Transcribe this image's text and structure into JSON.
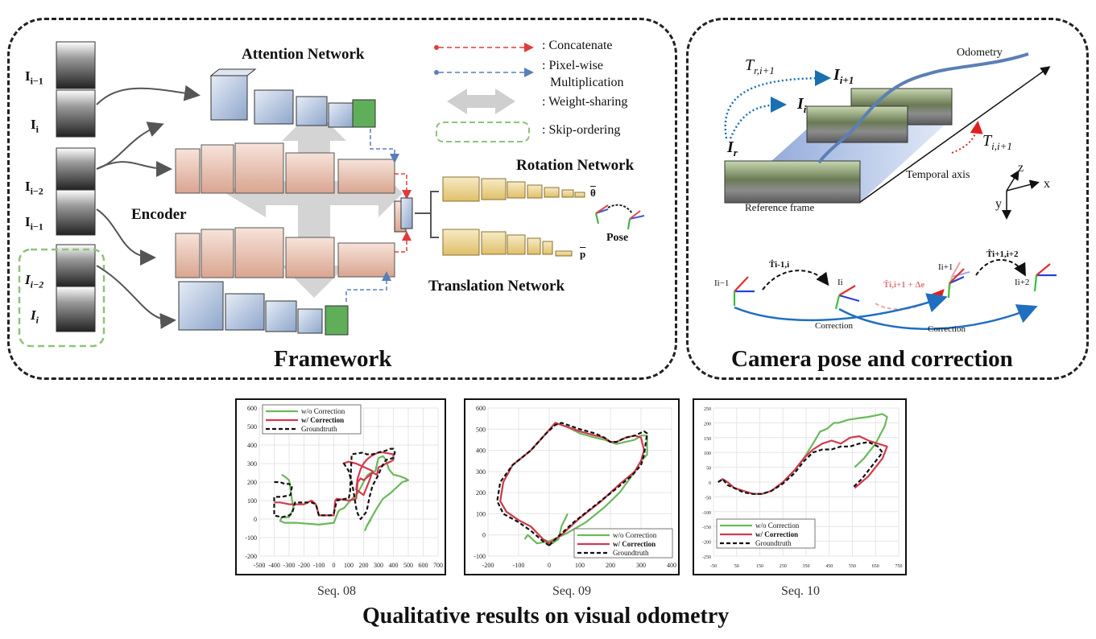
{
  "framework": {
    "title": "Framework",
    "attention_network": "Attention Network",
    "encoder": "Encoder",
    "rotation_network": "Rotation Network",
    "translation_network": "Translation Network",
    "theta": "θ",
    "p": "p",
    "pose": "Pose",
    "legend": {
      "concatenate": ": Concatenate",
      "pixelwise_1": ": Pixel-wise",
      "pixelwise_2": "Multiplication",
      "weight_sharing": ": Weight-sharing",
      "skip_ordering": ": Skip-ordering"
    },
    "inputs": [
      {
        "base": "I",
        "sub": "i−1"
      },
      {
        "base": "I",
        "sub": "i"
      },
      {
        "base": "I",
        "sub": "i−2"
      },
      {
        "base": "I",
        "sub": "i−1"
      },
      {
        "base": "I",
        "sub": "i−2"
      },
      {
        "base": "I",
        "sub": "i"
      }
    ]
  },
  "camera": {
    "title": "Camera pose and correction",
    "odometry": "Odometry",
    "t_r": "T",
    "t_r_sub": "r,i+1",
    "i_next": "I",
    "i_next_sub": "i+1",
    "i_cur": "I",
    "i_cur_sub": "i",
    "i_ref": "I",
    "i_ref_sub": "r",
    "t_i": "T",
    "t_i_sub": "i,i+1",
    "temporal_axis": "Temporal axis",
    "reference_frame": "Reference frame",
    "axis_z": "z",
    "axis_x": "x",
    "axis_y": "y",
    "nodes": [
      "Ii−1",
      "Ii",
      "Ii+1",
      "Ii+2"
    ],
    "edge_labels": [
      "T̂i-1,i",
      "T̂i,i+1 + Δe",
      "T̂i+1,i+2"
    ],
    "correction": "Correction"
  },
  "results": {
    "title": "Qualitative results on visual odometry",
    "legend": [
      "w/o Correction",
      "w/ Correction",
      "Groundtruth"
    ],
    "colors": {
      "wo": "#6ab95a",
      "w": "#d23a4e",
      "gt": "#111111"
    }
  },
  "chart_data": [
    {
      "type": "line",
      "caption": "Seq. 08",
      "xlim": [
        -500,
        700
      ],
      "ylim": [
        -200,
        600
      ],
      "xticks": [
        "-500",
        "-400",
        "-300",
        "-200",
        "-100",
        "0",
        "100",
        "200",
        "300",
        "400",
        "500",
        "600",
        "700"
      ],
      "yticks": [
        "-200",
        "-100",
        "0",
        "100",
        "200",
        "300",
        "400",
        "500",
        "600"
      ],
      "series": [
        {
          "name": "w/o Correction",
          "x": [
            -350,
            -330,
            -300,
            -290,
            -280,
            -270,
            -300,
            -350,
            -360,
            -330,
            -250,
            -100,
            0,
            30,
            40,
            70,
            100,
            160,
            200,
            220,
            230,
            250,
            280,
            290,
            300,
            330,
            350,
            370,
            400,
            450,
            480,
            500,
            460,
            420,
            380,
            330,
            290,
            240,
            220,
            210,
            220,
            250
          ],
          "y": [
            240,
            230,
            210,
            160,
            100,
            60,
            10,
            10,
            -10,
            -20,
            -20,
            -30,
            -20,
            40,
            50,
            60,
            90,
            140,
            200,
            230,
            240,
            250,
            260,
            300,
            330,
            340,
            320,
            270,
            240,
            230,
            220,
            210,
            200,
            170,
            140,
            110,
            60,
            -10,
            -40,
            -60,
            -40,
            0
          ]
        },
        {
          "name": "w/ Correction",
          "x": [
            -400,
            -380,
            -360,
            -300,
            -200,
            -150,
            -120,
            -100,
            -20,
            0,
            10,
            20,
            100,
            150,
            160,
            180,
            200,
            230,
            260,
            290,
            300,
            330,
            350,
            380,
            400,
            400,
            330,
            300,
            250,
            220,
            200,
            180,
            160,
            150,
            200,
            240,
            260,
            150,
            100,
            60
          ],
          "y": [
            90,
            90,
            90,
            80,
            80,
            100,
            80,
            20,
            20,
            20,
            100,
            110,
            100,
            110,
            200,
            220,
            210,
            230,
            250,
            240,
            280,
            290,
            300,
            310,
            320,
            350,
            360,
            360,
            340,
            320,
            300,
            270,
            220,
            160,
            130,
            210,
            260,
            300,
            310,
            300
          ]
        },
        {
          "name": "Groundtruth",
          "x": [
            -400,
            -360,
            -330,
            -300,
            -280,
            -290,
            -350,
            -400,
            -400,
            -350,
            -300,
            -280,
            -260,
            -200,
            -150,
            -120,
            -100,
            -20,
            0,
            20,
            80,
            100,
            110,
            120,
            200,
            220,
            260,
            300,
            350,
            380,
            400,
            410,
            400,
            350,
            320,
            300,
            260,
            240,
            220,
            180,
            160,
            150,
            140,
            130,
            120,
            100,
            60
          ],
          "y": [
            200,
            200,
            190,
            190,
            180,
            130,
            120,
            120,
            20,
            10,
            20,
            30,
            90,
            90,
            90,
            80,
            20,
            20,
            30,
            100,
            110,
            110,
            150,
            350,
            360,
            350,
            350,
            360,
            370,
            380,
            380,
            360,
            330,
            320,
            280,
            240,
            180,
            120,
            40,
            0,
            30,
            60,
            110,
            160,
            200,
            260,
            310
          ]
        }
      ]
    },
    {
      "type": "line",
      "caption": "Seq. 09",
      "xlim": [
        -200,
        400
      ],
      "ylim": [
        -100,
        600
      ],
      "xticks": [
        "-200",
        "-100",
        "0",
        "100",
        "200",
        "300",
        "400"
      ],
      "yticks": [
        "-100",
        "0",
        "100",
        "200",
        "300",
        "400",
        "500",
        "600"
      ],
      "series": [
        {
          "name": "w/o Correction",
          "x": [
            -80,
            -70,
            -40,
            0,
            60,
            120,
            180,
            230,
            270,
            300,
            320,
            320,
            300,
            280,
            250,
            220,
            200,
            180,
            150,
            100,
            60,
            40,
            20,
            -10,
            -60,
            -120,
            -150,
            -160,
            -140,
            -100,
            -60,
            -20,
            10,
            30,
            40,
            60
          ],
          "y": [
            -20,
            0,
            -40,
            -30,
            10,
            60,
            130,
            200,
            280,
            350,
            380,
            470,
            470,
            450,
            440,
            430,
            440,
            450,
            460,
            480,
            510,
            520,
            530,
            480,
            400,
            330,
            250,
            160,
            110,
            70,
            40,
            -20,
            -40,
            -20,
            40,
            100
          ]
        },
        {
          "name": "w/ Correction",
          "x": [
            0,
            40,
            100,
            170,
            230,
            280,
            300,
            310,
            300,
            280,
            250,
            220,
            200,
            180,
            150,
            100,
            60,
            40,
            20,
            -10,
            -60,
            -120,
            -150,
            -160,
            -140,
            -100,
            -60,
            -20,
            0
          ],
          "y": [
            -40,
            0,
            80,
            160,
            240,
            300,
            350,
            400,
            460,
            470,
            460,
            440,
            440,
            460,
            470,
            490,
            510,
            520,
            530,
            480,
            400,
            330,
            250,
            160,
            110,
            70,
            40,
            -20,
            -40
          ]
        },
        {
          "name": "Groundtruth",
          "x": [
            0,
            20,
            80,
            150,
            220,
            270,
            300,
            310,
            320,
            310,
            280,
            250,
            220,
            200,
            180,
            150,
            100,
            60,
            40,
            20,
            -10,
            -60,
            -120,
            -160,
            -170,
            -150,
            -100,
            -60,
            -20,
            0
          ],
          "y": [
            -50,
            -20,
            60,
            140,
            220,
            280,
            330,
            380,
            480,
            490,
            470,
            460,
            440,
            440,
            460,
            480,
            500,
            520,
            530,
            520,
            480,
            400,
            330,
            250,
            160,
            100,
            60,
            20,
            -30,
            -50
          ]
        }
      ]
    },
    {
      "type": "line",
      "caption": "Seq. 10",
      "xlim": [
        -50,
        750
      ],
      "ylim": [
        -250,
        250
      ],
      "xticks": [
        "-50",
        "50",
        "150",
        "250",
        "350",
        "450",
        "550",
        "650",
        "750"
      ],
      "yticks": [
        "-250",
        "-200",
        "-150",
        "-100",
        "-50",
        "0",
        "50",
        "100",
        "150",
        "200",
        "250"
      ],
      "series": [
        {
          "name": "w/o Correction",
          "x": [
            -30,
            -10,
            10,
            40,
            80,
            120,
            160,
            200,
            250,
            300,
            340,
            380,
            410,
            440,
            470,
            490,
            530,
            570,
            620,
            680,
            700,
            690,
            650,
            600,
            560
          ],
          "y": [
            0,
            10,
            0,
            -20,
            -30,
            -40,
            -40,
            -30,
            0,
            40,
            80,
            130,
            170,
            180,
            200,
            200,
            210,
            215,
            220,
            230,
            220,
            190,
            130,
            80,
            50
          ]
        },
        {
          "name": "w/ Correction",
          "x": [
            -30,
            -10,
            10,
            40,
            80,
            120,
            160,
            200,
            250,
            300,
            340,
            380,
            420,
            460,
            500,
            540,
            580,
            620,
            660,
            700,
            680,
            620,
            560
          ],
          "y": [
            0,
            10,
            0,
            -20,
            -30,
            -40,
            -40,
            -30,
            0,
            40,
            80,
            110,
            130,
            140,
            130,
            150,
            155,
            140,
            130,
            120,
            80,
            20,
            -20
          ]
        },
        {
          "name": "Groundtruth",
          "x": [
            -30,
            -10,
            10,
            40,
            80,
            120,
            160,
            200,
            250,
            300,
            340,
            380,
            420,
            460,
            500,
            540,
            580,
            620,
            660,
            680,
            640,
            590,
            550
          ],
          "y": [
            0,
            10,
            -10,
            -20,
            -35,
            -40,
            -40,
            -30,
            -5,
            30,
            70,
            100,
            110,
            110,
            120,
            120,
            130,
            135,
            120,
            100,
            60,
            10,
            -20
          ]
        }
      ]
    }
  ]
}
